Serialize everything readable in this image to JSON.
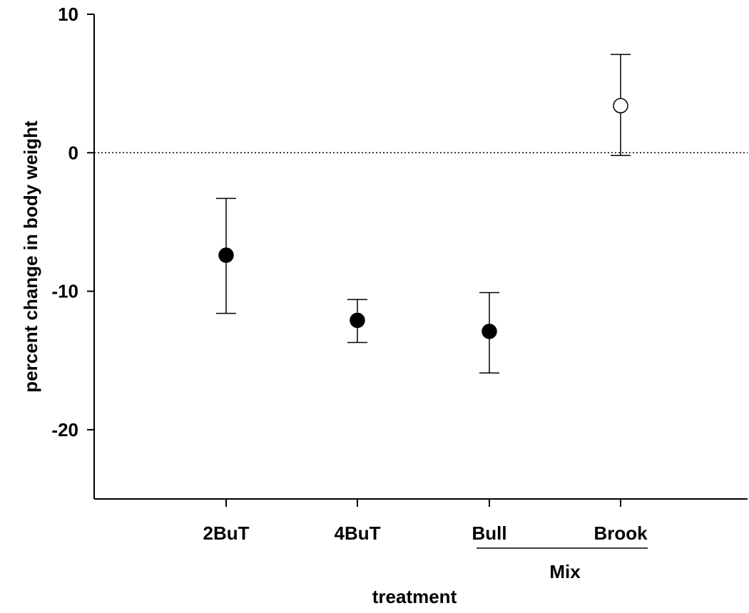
{
  "chart_data": {
    "type": "scatter",
    "categories": [
      "2BuT",
      "4BuT",
      "Bull",
      "Brook"
    ],
    "series": [
      {
        "points": [
          {
            "category": "2BuT",
            "mean": -7.4,
            "error_low": -11.6,
            "error_high": -3.3,
            "marker": "filled"
          },
          {
            "category": "4BuT",
            "mean": -12.1,
            "error_low": -13.7,
            "error_high": -10.6,
            "marker": "filled"
          },
          {
            "category": "Bull",
            "mean": -12.9,
            "error_low": -15.9,
            "error_high": -10.1,
            "marker": "filled"
          },
          {
            "category": "Brook",
            "mean": 3.4,
            "error_low": -0.2,
            "error_high": 7.1,
            "marker": "open"
          }
        ]
      }
    ],
    "group_label": {
      "text": "Mix",
      "spans": [
        "Bull",
        "Brook"
      ]
    },
    "xlabel": "treatment",
    "ylabel": "percent change in body weight",
    "ylim": [
      -25,
      10
    ],
    "yticks": [
      10,
      0,
      -10,
      -20
    ],
    "ytick_labels": [
      "10",
      "0",
      "-10",
      "-20"
    ],
    "reference_line": {
      "y": 0,
      "style": "dotted"
    },
    "grid": false,
    "legend": "none",
    "colors": {
      "marker": "#000000",
      "open_marker_fill": "#ffffff",
      "axis": "#000000"
    }
  }
}
